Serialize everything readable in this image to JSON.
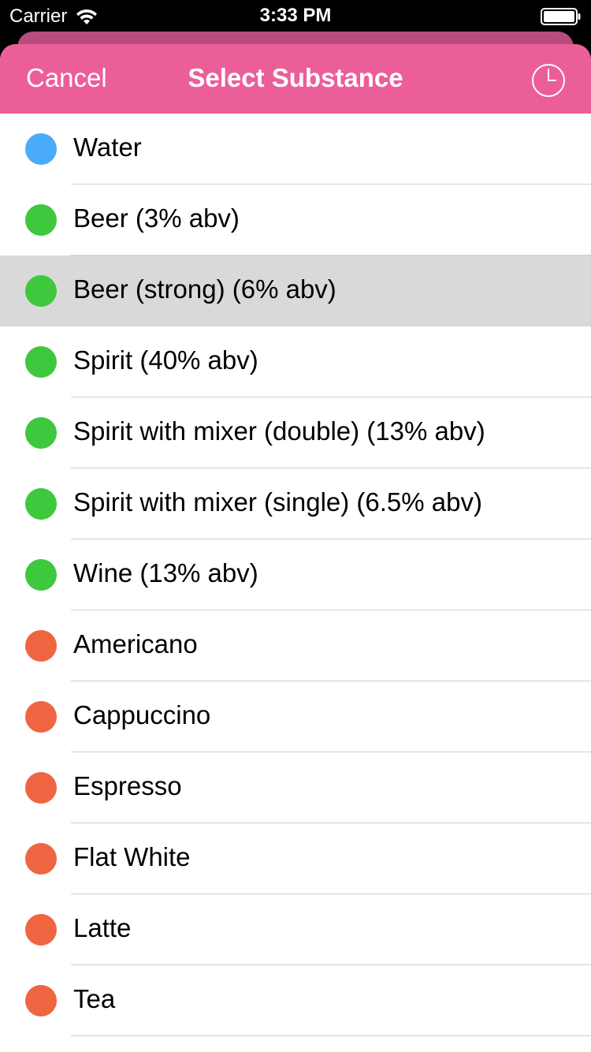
{
  "status_bar": {
    "carrier": "Carrier",
    "time": "3:33 PM",
    "icons": [
      "wifi-icon",
      "battery-icon"
    ]
  },
  "nav": {
    "cancel_label": "Cancel",
    "title": "Select Substance",
    "history_icon": "clock-icon"
  },
  "colors": {
    "accent": "#ec5e97",
    "water": "#4aabfb",
    "alcohol": "#3ec83e",
    "caffeine": "#ef6542",
    "selected_row": "#d9d9d9"
  },
  "substances": [
    {
      "label": "Water",
      "color": "#4aabfb",
      "selected": false
    },
    {
      "label": "Beer (3% abv)",
      "color": "#3ec83e",
      "selected": false
    },
    {
      "label": "Beer (strong) (6% abv)",
      "color": "#3ec83e",
      "selected": true
    },
    {
      "label": "Spirit (40% abv)",
      "color": "#3ec83e",
      "selected": false
    },
    {
      "label": "Spirit with mixer (double) (13% abv)",
      "color": "#3ec83e",
      "selected": false
    },
    {
      "label": "Spirit with mixer (single) (6.5% abv)",
      "color": "#3ec83e",
      "selected": false
    },
    {
      "label": "Wine (13% abv)",
      "color": "#3ec83e",
      "selected": false
    },
    {
      "label": "Americano",
      "color": "#ef6542",
      "selected": false
    },
    {
      "label": "Cappuccino",
      "color": "#ef6542",
      "selected": false
    },
    {
      "label": "Espresso",
      "color": "#ef6542",
      "selected": false
    },
    {
      "label": "Flat White",
      "color": "#ef6542",
      "selected": false
    },
    {
      "label": "Latte",
      "color": "#ef6542",
      "selected": false
    },
    {
      "label": "Tea",
      "color": "#ef6542",
      "selected": false
    }
  ]
}
